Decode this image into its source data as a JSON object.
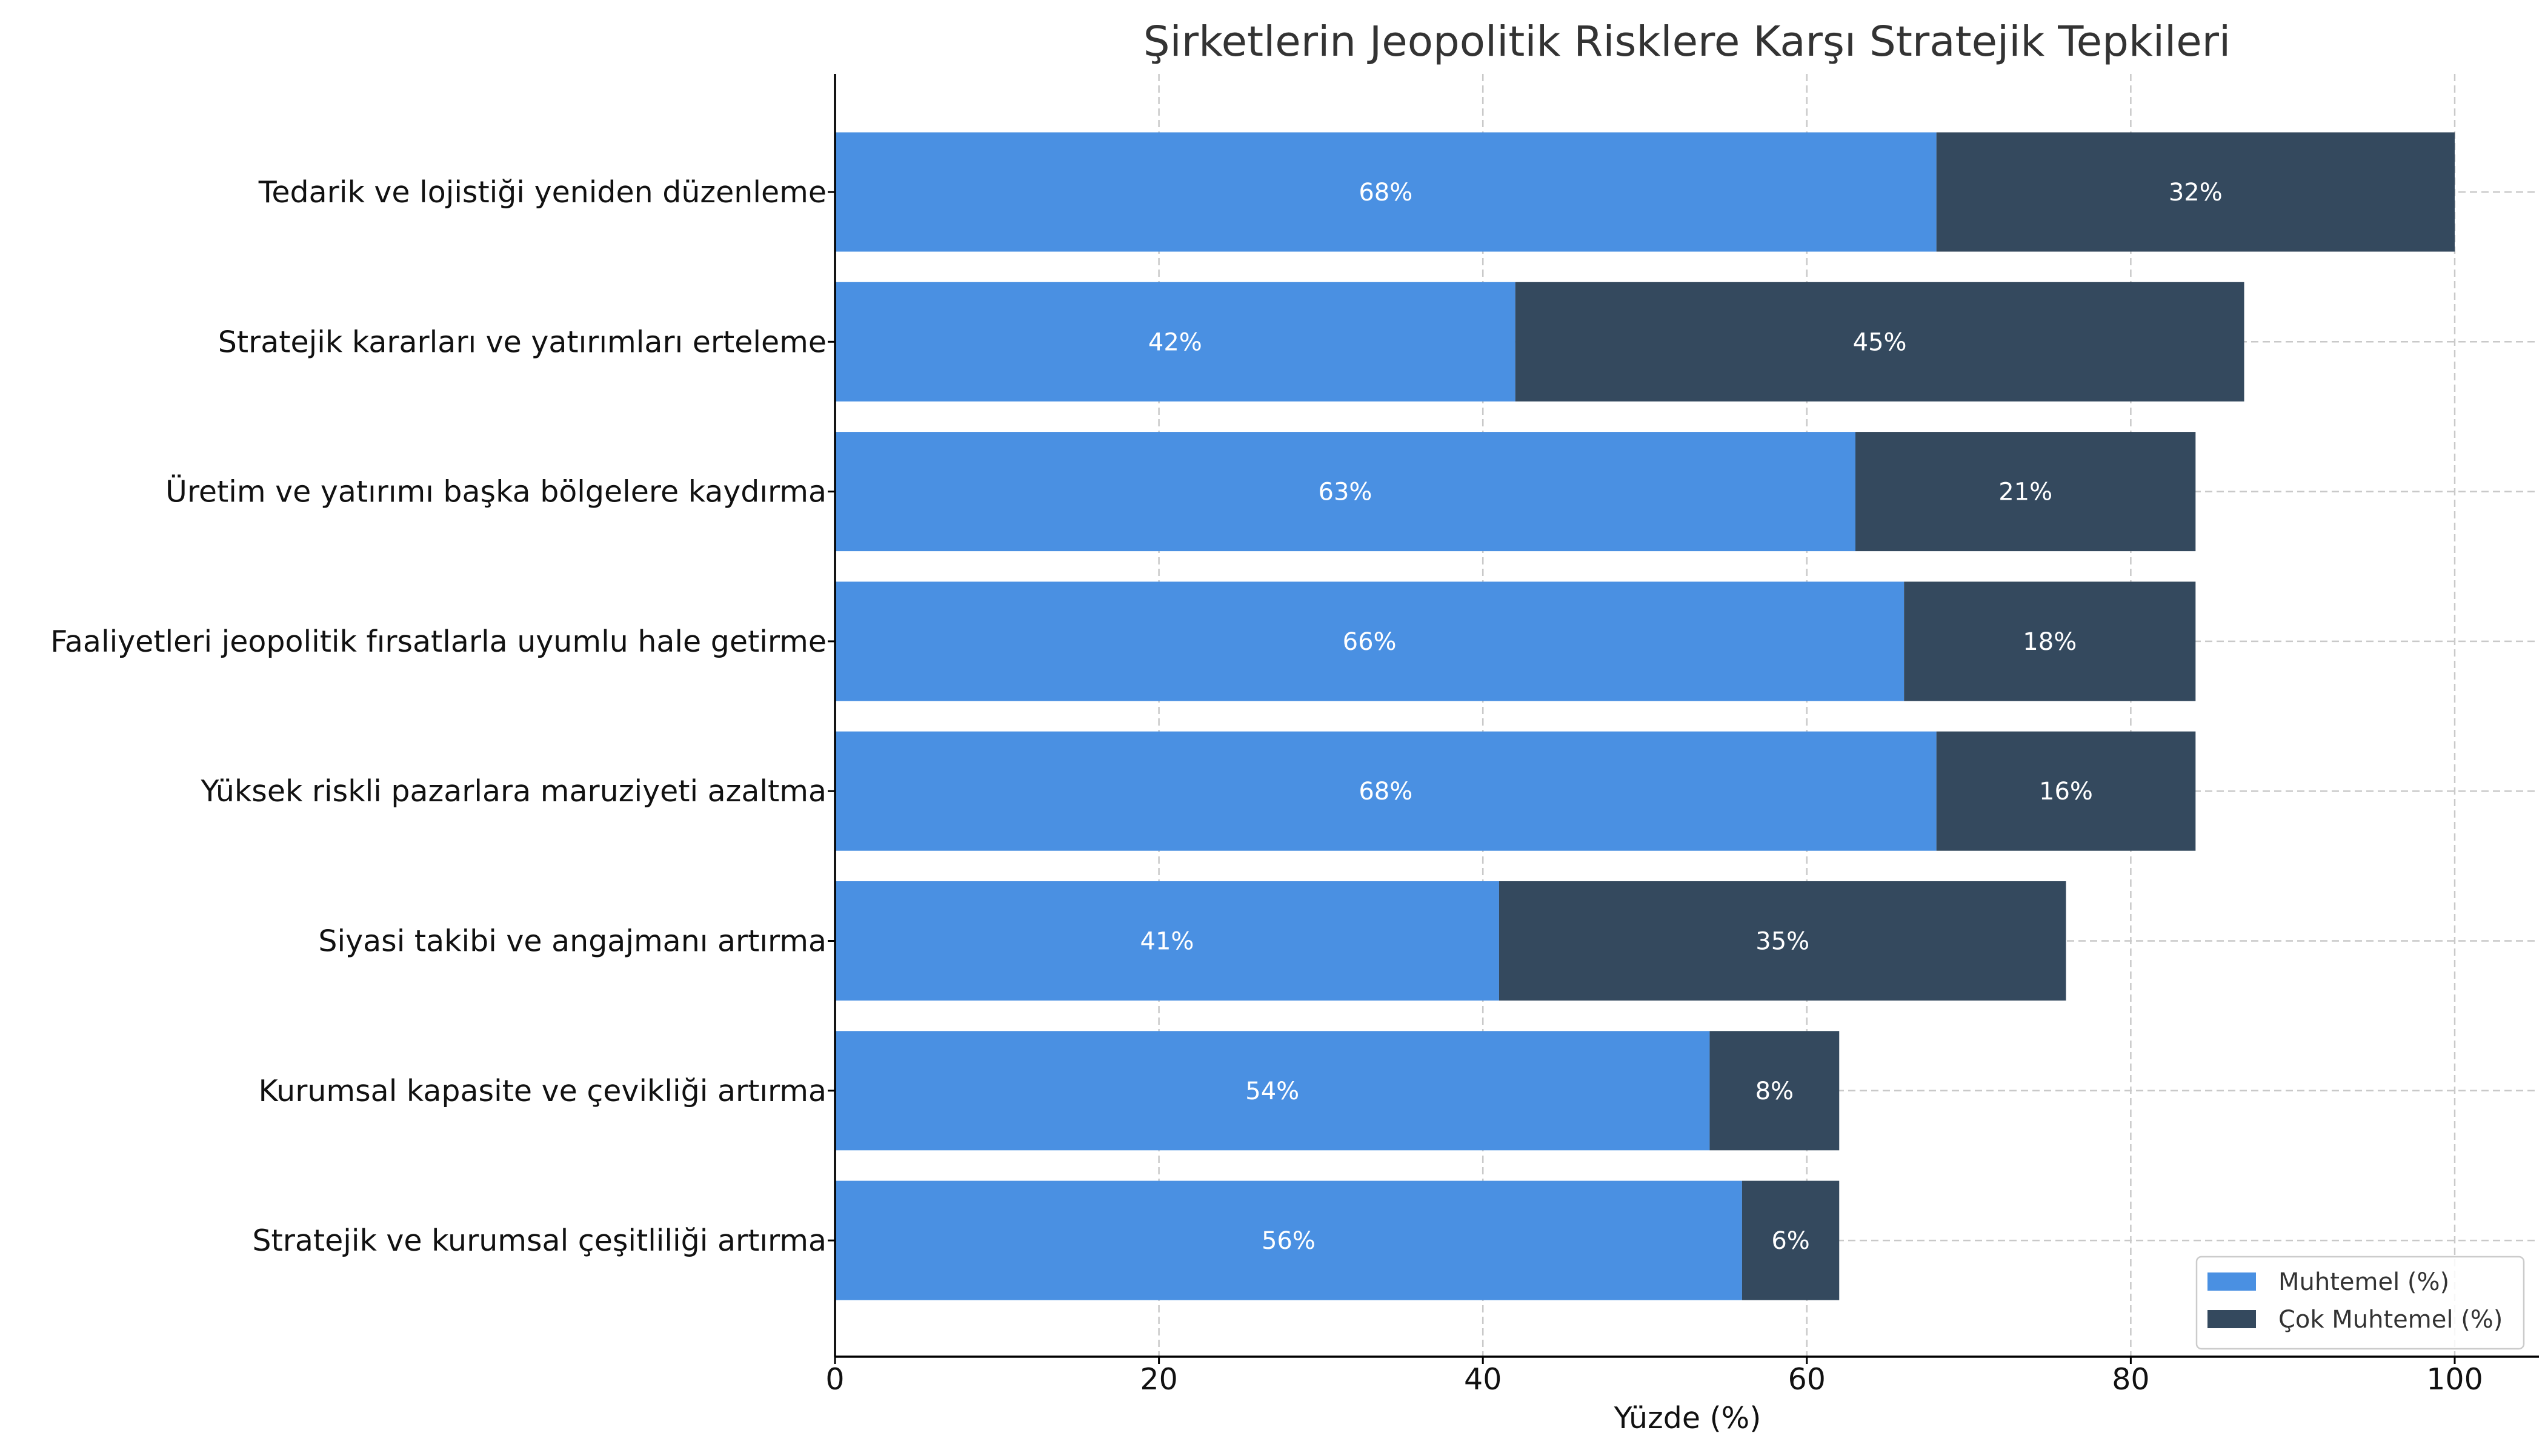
{
  "chart_data": {
    "type": "bar",
    "orientation": "horizontal",
    "stacked": true,
    "title": "Şirketlerin Jeopolitik Risklere Karşı Stratejik Tepkileri",
    "xlabel": "Yüzde (%)",
    "ylabel": "",
    "xlim": [
      0,
      105
    ],
    "xticks": [
      0,
      20,
      40,
      60,
      80,
      100
    ],
    "grid": true,
    "legend_position": "lower-right",
    "categories": [
      "Tedarik ve lojistiği yeniden düzenleme",
      "Stratejik kararları ve yatırımları erteleme",
      "Üretim ve yatırımı başka bölgelere kaydırma",
      "Faaliyetleri jeopolitik fırsatlarla uyumlu hale getirme",
      "Yüksek riskli pazarlara maruziyeti azaltma",
      "Siyasi takibi ve angajmanı artırma",
      "Kurumsal kapasite ve çevikliği artırma",
      "Stratejik ve kurumsal çeşitliliği artırma"
    ],
    "series": [
      {
        "name": "Muhtemel (%)",
        "color": "#4a90e2",
        "values": [
          68,
          42,
          63,
          66,
          68,
          41,
          54,
          56
        ],
        "labels": [
          "68%",
          "42%",
          "63%",
          "66%",
          "68%",
          "41%",
          "54%",
          "56%"
        ]
      },
      {
        "name": "Çok Muhtemel (%)",
        "color": "#34495e",
        "values": [
          32,
          45,
          21,
          18,
          16,
          35,
          8,
          6
        ],
        "labels": [
          "32%",
          "45%",
          "21%",
          "18%",
          "16%",
          "35%",
          "8%",
          "6%"
        ]
      }
    ]
  }
}
